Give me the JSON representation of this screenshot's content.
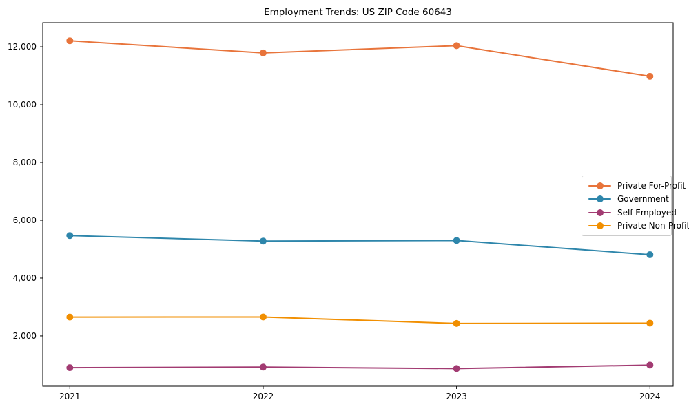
{
  "figure": {
    "background": "#ffffff",
    "text_color": "#000000",
    "axis_color": "#000000"
  },
  "chart_data": {
    "type": "line",
    "title": "Employment Trends: US ZIP Code 60643",
    "xlabel": "",
    "ylabel": "",
    "x": [
      2021,
      2022,
      2023,
      2024
    ],
    "categories": [
      "2021",
      "2022",
      "2023",
      "2024"
    ],
    "series": [
      {
        "name": "Private For-Profit",
        "color": "#E8743B",
        "values": [
          12210,
          11790,
          12040,
          10980
        ]
      },
      {
        "name": "Government",
        "color": "#2E86AB",
        "values": [
          5470,
          5280,
          5300,
          4810
        ]
      },
      {
        "name": "Self-Employed",
        "color": "#A23B72",
        "values": [
          900,
          920,
          870,
          990
        ]
      },
      {
        "name": "Private Non-Profit",
        "color": "#F18F01",
        "values": [
          2650,
          2655,
          2430,
          2440
        ]
      }
    ],
    "xlim": [
      2020.86,
      2024.12
    ],
    "ylim": [
      260,
      12835
    ],
    "yticks": [
      2000,
      4000,
      6000,
      8000,
      10000,
      12000
    ],
    "ytick_labels": [
      "2,000",
      "4,000",
      "6,000",
      "8,000",
      "10,000",
      "12,000"
    ],
    "grid": false,
    "marker": "circle",
    "marker_radius": 5,
    "line_width": 2,
    "legend": {
      "position": "center-right",
      "entries": [
        "Private For-Profit",
        "Government",
        "Self-Employed",
        "Private Non-Profit"
      ]
    }
  }
}
